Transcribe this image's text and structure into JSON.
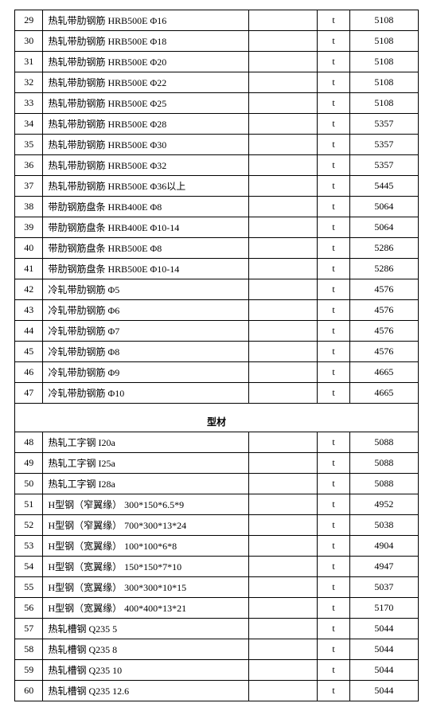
{
  "columns": {
    "idx_width_pct": 7,
    "name_width_pct": 51,
    "blank_width_pct": 17,
    "unit_width_pct": 8,
    "val_width_pct": 17
  },
  "colors": {
    "border": "#000000",
    "background": "#ffffff",
    "text": "#000000"
  },
  "typography": {
    "font_family": "SimSun",
    "font_size_pt": 9
  },
  "section_title": "型材",
  "rows_before": [
    {
      "idx": "29",
      "name": "热轧带肋钢筋 HRB500E Φ16",
      "blank": "",
      "unit": "t",
      "val": "5108"
    },
    {
      "idx": "30",
      "name": "热轧带肋钢筋 HRB500E Φ18",
      "blank": "",
      "unit": "t",
      "val": "5108"
    },
    {
      "idx": "31",
      "name": "热轧带肋钢筋 HRB500E Φ20",
      "blank": "",
      "unit": "t",
      "val": "5108"
    },
    {
      "idx": "32",
      "name": "热轧带肋钢筋 HRB500E Φ22",
      "blank": "",
      "unit": "t",
      "val": "5108"
    },
    {
      "idx": "33",
      "name": "热轧带肋钢筋 HRB500E Φ25",
      "blank": "",
      "unit": "t",
      "val": "5108"
    },
    {
      "idx": "34",
      "name": "热轧带肋钢筋 HRB500E Φ28",
      "blank": "",
      "unit": "t",
      "val": "5357"
    },
    {
      "idx": "35",
      "name": "热轧带肋钢筋 HRB500E Φ30",
      "blank": "",
      "unit": "t",
      "val": "5357"
    },
    {
      "idx": "36",
      "name": "热轧带肋钢筋 HRB500E Φ32",
      "blank": "",
      "unit": "t",
      "val": "5357"
    },
    {
      "idx": "37",
      "name": "热轧带肋钢筋 HRB500E Φ36以上",
      "blank": "",
      "unit": "t",
      "val": "5445"
    },
    {
      "idx": "38",
      "name": "带肋钢筋盘条 HRB400E Φ8",
      "blank": "",
      "unit": "t",
      "val": "5064"
    },
    {
      "idx": "39",
      "name": "带肋钢筋盘条 HRB400E Φ10-14",
      "blank": "",
      "unit": "t",
      "val": "5064"
    },
    {
      "idx": "40",
      "name": "带肋钢筋盘条 HRB500E Φ8",
      "blank": "",
      "unit": "t",
      "val": "5286"
    },
    {
      "idx": "41",
      "name": "带肋钢筋盘条 HRB500E Φ10-14",
      "blank": "",
      "unit": "t",
      "val": "5286"
    },
    {
      "idx": "42",
      "name": "冷轧带肋钢筋 Φ5",
      "blank": "",
      "unit": "t",
      "val": "4576"
    },
    {
      "idx": "43",
      "name": "冷轧带肋钢筋 Φ6",
      "blank": "",
      "unit": "t",
      "val": "4576"
    },
    {
      "idx": "44",
      "name": "冷轧带肋钢筋 Φ7",
      "blank": "",
      "unit": "t",
      "val": "4576"
    },
    {
      "idx": "45",
      "name": "冷轧带肋钢筋 Φ8",
      "blank": "",
      "unit": "t",
      "val": "4576"
    },
    {
      "idx": "46",
      "name": "冷轧带肋钢筋 Φ9",
      "blank": "",
      "unit": "t",
      "val": "4665"
    },
    {
      "idx": "47",
      "name": "冷轧带肋钢筋 Φ10",
      "blank": "",
      "unit": "t",
      "val": "4665"
    }
  ],
  "rows_after": [
    {
      "idx": "48",
      "name": "热轧工字钢 I20a",
      "blank": "",
      "unit": "t",
      "val": "5088"
    },
    {
      "idx": "49",
      "name": "热轧工字钢 I25a",
      "blank": "",
      "unit": "t",
      "val": "5088"
    },
    {
      "idx": "50",
      "name": "热轧工字钢 I28a",
      "blank": "",
      "unit": "t",
      "val": "5088"
    },
    {
      "idx": "51",
      "name": "H型钢（窄翼缘） 300*150*6.5*9",
      "blank": "",
      "unit": "t",
      "val": "4952"
    },
    {
      "idx": "52",
      "name": "H型钢（窄翼缘） 700*300*13*24",
      "blank": "",
      "unit": "t",
      "val": "5038"
    },
    {
      "idx": "53",
      "name": "H型钢（宽翼缘） 100*100*6*8",
      "blank": "",
      "unit": "t",
      "val": "4904"
    },
    {
      "idx": "54",
      "name": "H型钢（宽翼缘） 150*150*7*10",
      "blank": "",
      "unit": "t",
      "val": "4947"
    },
    {
      "idx": "55",
      "name": "H型钢（宽翼缘） 300*300*10*15",
      "blank": "",
      "unit": "t",
      "val": "5037"
    },
    {
      "idx": "56",
      "name": "H型钢（宽翼缘） 400*400*13*21",
      "blank": "",
      "unit": "t",
      "val": "5170"
    },
    {
      "idx": "57",
      "name": "热轧槽钢 Q235 5",
      "blank": "",
      "unit": "t",
      "val": "5044"
    },
    {
      "idx": "58",
      "name": "热轧槽钢 Q235 8",
      "blank": "",
      "unit": "t",
      "val": "5044"
    },
    {
      "idx": "59",
      "name": "热轧槽钢 Q235 10",
      "blank": "",
      "unit": "t",
      "val": "5044"
    },
    {
      "idx": "60",
      "name": "热轧槽钢 Q235 12.6",
      "blank": "",
      "unit": "t",
      "val": "5044"
    }
  ]
}
